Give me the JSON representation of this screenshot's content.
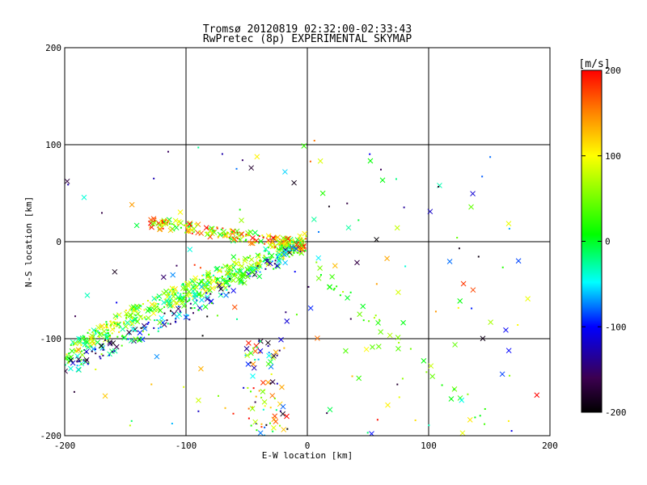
{
  "chart_data": {
    "type": "scatter",
    "title_line1": "Tromsø 20120819 02:32:00-02:33:43",
    "title_line2": "RwPretec (8p) EXPERIMENTAL SKYMAP",
    "xlabel": "E-W location [km]",
    "ylabel": "N-S location [km]",
    "xlim": [
      -200,
      200
    ],
    "ylim": [
      -200,
      200
    ],
    "xticks": [
      -200,
      -100,
      0,
      100,
      200
    ],
    "yticks": [
      -200,
      -100,
      0,
      100,
      200
    ],
    "grid": true,
    "colorbar": {
      "label": "[m/s]",
      "min": -200,
      "max": 200,
      "ticks": [
        200,
        100,
        0,
        -100,
        -200
      ],
      "colormap": "rainbow (black-purple-blue-cyan-green-yellow-orange-red)"
    },
    "markers": [
      "x (cross)",
      "small dot"
    ],
    "point_groups": [
      {
        "name": "arc_main",
        "count": 500,
        "x_range": [
          -200,
          0
        ],
        "y_range": [
          -120,
          0
        ],
        "v_range": [
          -40,
          120
        ]
      },
      {
        "name": "arc_upper",
        "count": 230,
        "x_range": [
          -130,
          0
        ],
        "y_range": [
          -5,
          20
        ],
        "v_range": [
          -20,
          200
        ]
      },
      {
        "name": "arc_lower",
        "count": 200,
        "x_range": [
          -200,
          -5
        ],
        "y_range": [
          -130,
          -5
        ],
        "v_range": [
          -200,
          60
        ]
      },
      {
        "name": "east_trail",
        "count": 40,
        "x_range": [
          0,
          150
        ],
        "y_range": [
          -185,
          -20
        ],
        "v_range": [
          0,
          80
        ]
      },
      {
        "name": "south_column",
        "count": 80,
        "x_range": [
          -50,
          -20
        ],
        "y_range": [
          -200,
          -100
        ],
        "v_range": [
          -200,
          200
        ]
      },
      {
        "name": "scattered",
        "count": 160,
        "x_range": [
          -200,
          190
        ],
        "y_range": [
          -200,
          105
        ],
        "v_range": [
          -200,
          200
        ]
      }
    ]
  }
}
